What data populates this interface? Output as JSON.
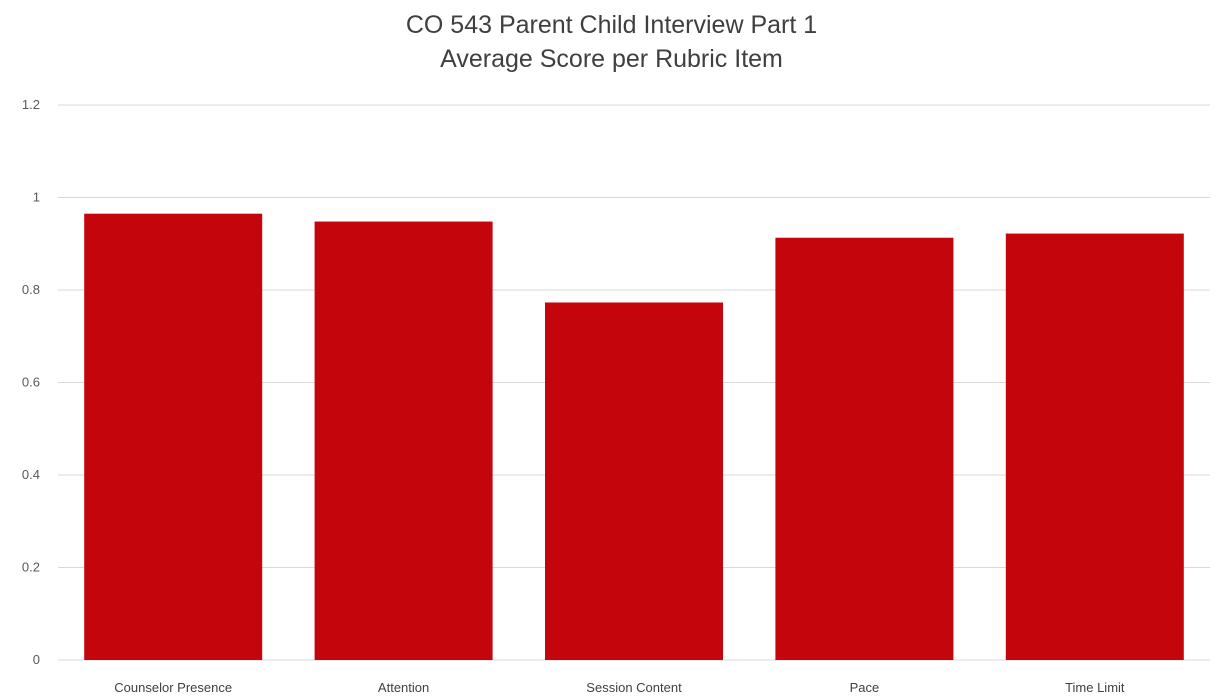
{
  "chart_data": {
    "type": "bar",
    "title": "CO 543 Parent Child Interview Part 1",
    "subtitle": "Average Score per Rubric Item",
    "categories": [
      "Counselor Presence",
      "Attention",
      "Session Content",
      "Pace",
      "Time Limit"
    ],
    "values": [
      0.965,
      0.948,
      0.773,
      0.913,
      0.922
    ],
    "ylim": [
      0,
      1.2
    ],
    "yticks": [
      "0",
      "0.2",
      "0.4",
      "0.6",
      "0.8",
      "1",
      "1.2"
    ],
    "grid": true,
    "bar_color": "#c5050c",
    "grid_color": "#d9d9d9"
  }
}
